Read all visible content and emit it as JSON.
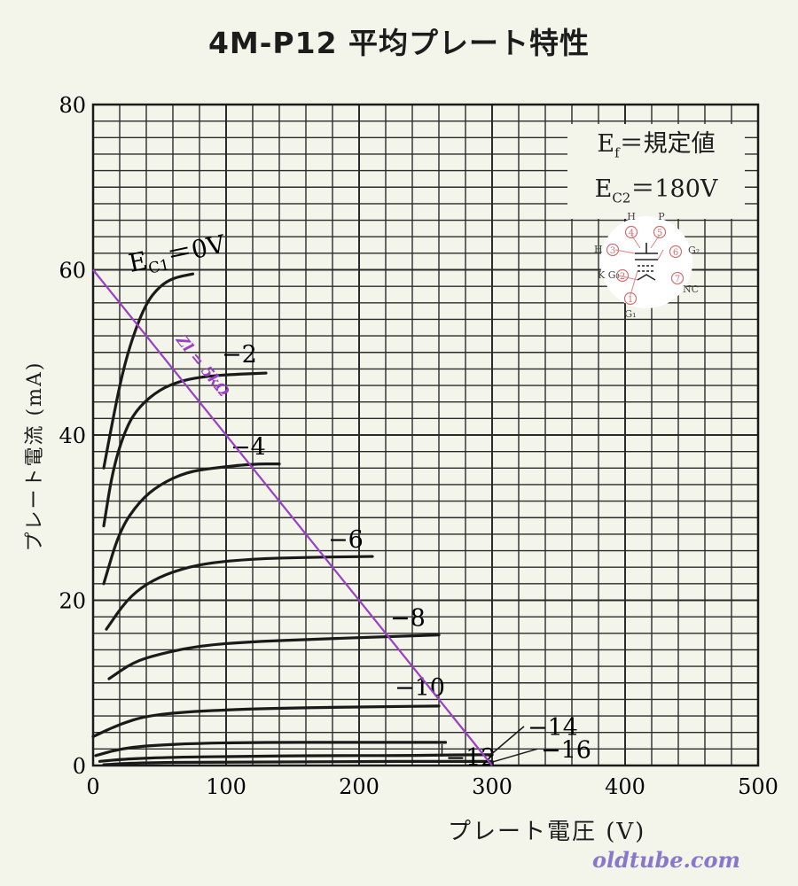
{
  "page": {
    "title": "4M-P12 平均プレート特性",
    "watermark": "oldtube.com"
  },
  "conditions": {
    "ef_symbol": "E",
    "ef_sub": "f",
    "ef_value": "＝規定値",
    "ec2_symbol": "E",
    "ec2_sub": "C2",
    "ec2_value": "＝180V"
  },
  "basing": {
    "pins": [
      {
        "num": "4",
        "label": "H"
      },
      {
        "num": "5",
        "label": "P"
      },
      {
        "num": "6",
        "label": "G₂"
      },
      {
        "num": "7",
        "label": "NC"
      },
      {
        "num": "1",
        "label": "G₁"
      },
      {
        "num": "2",
        "label": "K G₃"
      },
      {
        "num": "3",
        "label": "H"
      }
    ]
  },
  "chart_data": {
    "type": "line",
    "title": "4M-P12 平均プレート特性",
    "xlabel": "プレート電圧 (V)",
    "ylabel": "プレート電流 (mA)",
    "xlim": [
      0,
      500
    ],
    "ylim": [
      0,
      80
    ],
    "x_ticks": [
      "0",
      "100",
      "200",
      "300",
      "400",
      "500"
    ],
    "y_ticks": [
      "0",
      "20",
      "40",
      "60",
      "80"
    ],
    "grid": true,
    "series": [
      {
        "name": "Ec1=0V",
        "label": "E",
        "label_sub": "C1",
        "label_rest": "＝0V",
        "x": [
          8,
          15,
          22,
          30,
          40,
          50,
          60,
          75
        ],
        "y": [
          36,
          42,
          47.5,
          52,
          56,
          58,
          59,
          59.5
        ]
      },
      {
        "name": "-2",
        "label": "−2",
        "x": [
          8,
          15,
          25,
          35,
          50,
          65,
          80,
          100,
          130
        ],
        "y": [
          29,
          36,
          41,
          43.5,
          45.5,
          46.5,
          47,
          47.3,
          47.5
        ]
      },
      {
        "name": "-4",
        "label": "−4",
        "x": [
          8,
          20,
          35,
          50,
          70,
          90,
          120,
          140
        ],
        "y": [
          22,
          28.5,
          32,
          34,
          35.5,
          36,
          36.5,
          36.5
        ]
      },
      {
        "name": "-6",
        "label": "−6",
        "x": [
          10,
          25,
          40,
          60,
          85,
          120,
          160,
          210
        ],
        "y": [
          16.5,
          20,
          22,
          23.5,
          24.5,
          25,
          25.2,
          25.3
        ]
      },
      {
        "name": "-8",
        "label": "−8",
        "x": [
          12,
          30,
          50,
          80,
          120,
          170,
          220,
          260
        ],
        "y": [
          10.5,
          12.5,
          13.5,
          14.5,
          15,
          15.3,
          15.6,
          15.8
        ]
      },
      {
        "name": "-10",
        "label": "−10",
        "x": [
          0,
          20,
          40,
          70,
          110,
          160,
          210,
          260
        ],
        "y": [
          3.5,
          5,
          6,
          6.5,
          6.8,
          7,
          7.1,
          7.2
        ]
      },
      {
        "name": "-12",
        "label": "−12",
        "x": [
          2,
          20,
          40,
          80,
          130,
          180,
          230,
          265
        ],
        "y": [
          1.2,
          2,
          2.4,
          2.7,
          2.8,
          2.8,
          2.8,
          2.8
        ]
      },
      {
        "name": "-14",
        "label": "−14",
        "x": [
          5,
          25,
          60,
          110,
          170,
          230,
          280,
          300
        ],
        "y": [
          0.5,
          0.8,
          1,
          1.1,
          1.2,
          1.2,
          1.3,
          1.3
        ]
      },
      {
        "name": "-16",
        "label": "−16",
        "x": [
          8,
          30,
          70,
          130,
          200,
          260,
          300
        ],
        "y": [
          0.1,
          0.3,
          0.4,
          0.4,
          0.5,
          0.5,
          0.5
        ]
      }
    ],
    "load_line": {
      "label": "Zl = 5kΩ",
      "x": [
        0,
        300
      ],
      "y": [
        60,
        0
      ],
      "color": "#9b3fc4"
    }
  }
}
